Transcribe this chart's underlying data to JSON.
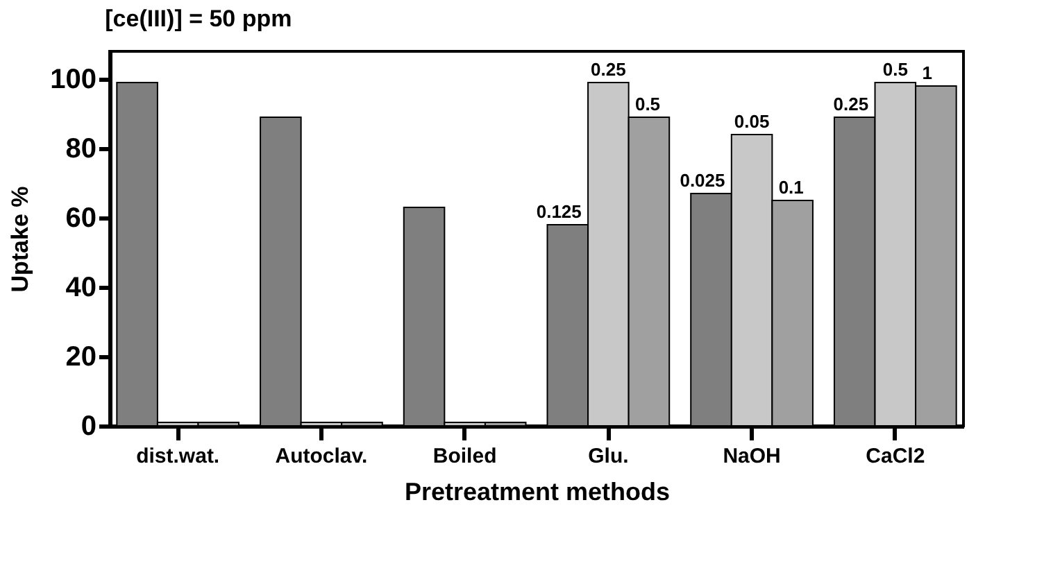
{
  "chart_data": {
    "type": "bar",
    "title": "[ce(III)] = 50 ppm",
    "xlabel": "Pretreatment methods",
    "ylabel": "Uptake %",
    "categories": [
      "dist.wat.",
      "Autoclav.",
      "Boiled",
      "Glu.",
      "NaOH",
      "CaCl2"
    ],
    "series": [
      {
        "color": "#7f7f7f",
        "values": [
          99,
          89,
          63,
          58,
          67,
          89
        ]
      },
      {
        "color": "#c8c8c8",
        "values": [
          1,
          1,
          1,
          99,
          84,
          99
        ]
      },
      {
        "color": "#a0a0a0",
        "values": [
          1,
          1,
          1,
          89,
          65,
          98
        ]
      }
    ],
    "ylim": [
      0,
      108
    ],
    "yticks": [
      0,
      20,
      40,
      60,
      80,
      100
    ],
    "grid": false,
    "legend": false,
    "annotations": [
      "0.125",
      "0.25",
      "0.5",
      "0.025",
      "0.05",
      "0.1",
      "0.25",
      "0.5",
      "1"
    ]
  }
}
